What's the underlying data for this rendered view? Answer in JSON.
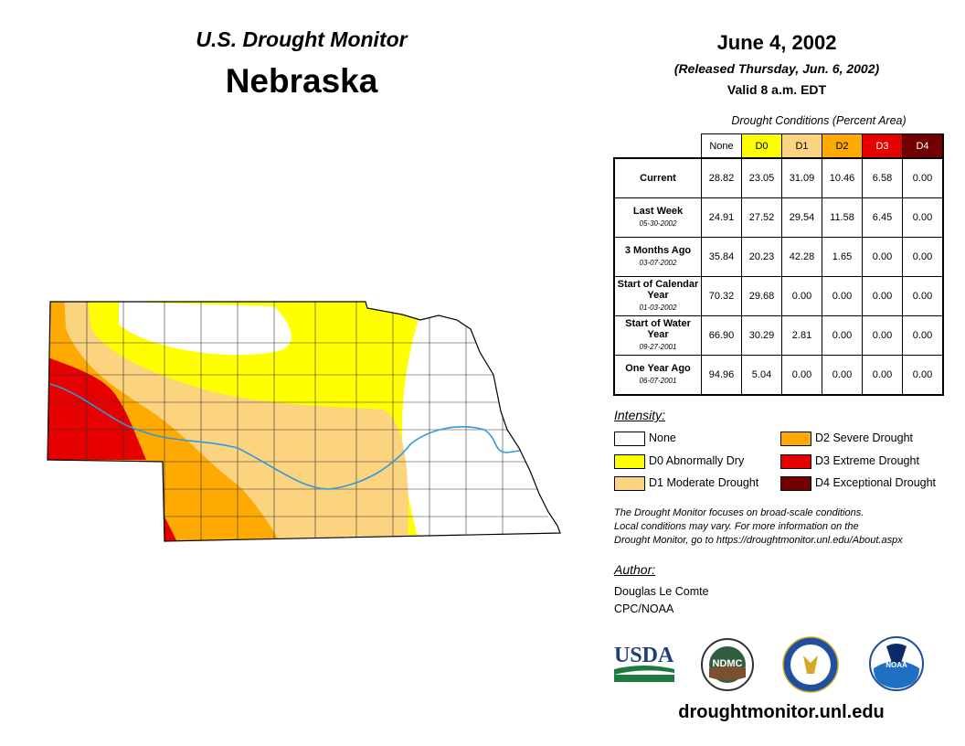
{
  "header": {
    "subtitle": "U.S. Drought Monitor",
    "state": "Nebraska",
    "date": "June 4, 2002",
    "released": "(Released Thursday, Jun. 6, 2002)",
    "valid": "Valid 8 a.m. EDT"
  },
  "table": {
    "caption": "Drought Conditions (Percent Area)",
    "columns": [
      "None",
      "D0",
      "D1",
      "D2",
      "D3",
      "D4"
    ],
    "column_colors": [
      "#ffffff",
      "#ffff00",
      "#fcd37f",
      "#ffaa00",
      "#e60000",
      "#730000"
    ],
    "rows": [
      {
        "label": "Current",
        "date": "",
        "values": [
          "28.82",
          "23.05",
          "31.09",
          "10.46",
          "6.58",
          "0.00"
        ]
      },
      {
        "label": "Last Week",
        "date": "05-30-2002",
        "values": [
          "24.91",
          "27.52",
          "29.54",
          "11.58",
          "6.45",
          "0.00"
        ]
      },
      {
        "label": "3 Months Ago",
        "date": "03-07-2002",
        "values": [
          "35.84",
          "20.23",
          "42.28",
          "1.65",
          "0.00",
          "0.00"
        ]
      },
      {
        "label": "Start of Calendar Year",
        "date": "01-03-2002",
        "values": [
          "70.32",
          "29.68",
          "0.00",
          "0.00",
          "0.00",
          "0.00"
        ]
      },
      {
        "label": "Start of Water Year",
        "date": "09-27-2001",
        "values": [
          "66.90",
          "30.29",
          "2.81",
          "0.00",
          "0.00",
          "0.00"
        ]
      },
      {
        "label": "One Year Ago",
        "date": "06-07-2001",
        "values": [
          "94.96",
          "5.04",
          "0.00",
          "0.00",
          "0.00",
          "0.00"
        ]
      }
    ]
  },
  "legend": {
    "title": "Intensity:",
    "items": [
      {
        "label": "None",
        "color": "#ffffff"
      },
      {
        "label": "D0 Abnormally Dry",
        "color": "#ffff00"
      },
      {
        "label": "D1 Moderate Drought",
        "color": "#fcd37f"
      },
      {
        "label": "D2 Severe Drought",
        "color": "#ffaa00"
      },
      {
        "label": "D3 Extreme Drought",
        "color": "#e60000"
      },
      {
        "label": "D4 Exceptional Drought",
        "color": "#730000"
      }
    ]
  },
  "note": {
    "line1": "The Drought Monitor focuses on broad-scale conditions.",
    "line2": "Local conditions may vary. For more information on the",
    "line3": "Drought Monitor, go to https://droughtmonitor.unl.edu/About.aspx"
  },
  "author": {
    "heading": "Author:",
    "name": "Douglas Le Comte",
    "org": "CPC/NOAA"
  },
  "logos": {
    "usda": "USDA",
    "ndmc": "NDMC",
    "noaa": "NOAA"
  },
  "footer_url": "droughtmonitor.unl.edu",
  "map": {
    "river_color": "#3399dd"
  }
}
